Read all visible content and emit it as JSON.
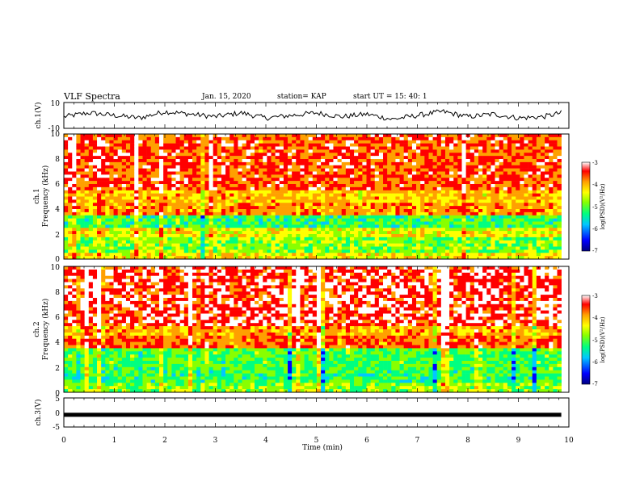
{
  "header": {
    "title": "VLF Spectra",
    "date": "Jan. 15, 2020",
    "station": "station= KAP",
    "start": "start  UT =   15: 40: 1"
  },
  "colors": {
    "colormap": [
      "#00007f",
      "#0000ff",
      "#00c8ff",
      "#00ff80",
      "#88ff00",
      "#ffff00",
      "#ffa000",
      "#ff0000",
      "#ffffff"
    ],
    "trace": "#000000"
  },
  "chart_data": [
    {
      "type": "line",
      "id": "ch1-waveform",
      "ylabel": "ch.1(V)",
      "ylim": [
        -10,
        10
      ],
      "yticks": [
        "10",
        "-10"
      ],
      "x_range_min": [
        0,
        9.85
      ],
      "x": [
        0,
        0.5,
        1.0,
        1.5,
        2.0,
        2.5,
        3.0,
        3.5,
        4.0,
        4.5,
        5.0,
        5.5,
        6.0,
        6.5,
        7.0,
        7.5,
        8.0,
        8.5,
        9.0,
        9.5,
        9.85
      ],
      "y": [
        -1,
        2,
        0,
        -2,
        3,
        1,
        -1,
        2,
        -2,
        0,
        2,
        -1,
        1,
        -3,
        0,
        3,
        -1,
        1,
        -2,
        -1,
        2
      ]
    },
    {
      "type": "heatmap",
      "id": "ch1-spectrogram",
      "ylabel": "ch.1\nFrequency (kHz)",
      "xlim_min": [
        0,
        9.85
      ],
      "ylim_khz": [
        0,
        10
      ],
      "yticks": [
        "10",
        "8",
        "6",
        "4",
        "2",
        "0"
      ],
      "colorbar": {
        "label": "log(PSD)(V²/Hz)",
        "range": [
          -7,
          -3
        ],
        "ticks": [
          "-3",
          "-4",
          "-5",
          "-6",
          "-7"
        ]
      },
      "bands_khz": [
        {
          "from": 0,
          "to": 0.6,
          "level": -4.5
        },
        {
          "from": 0.6,
          "to": 1.8,
          "level": -5.0
        },
        {
          "from": 1.8,
          "to": 2.4,
          "level": -4.6
        },
        {
          "from": 2.4,
          "to": 3.5,
          "level": -5.3
        },
        {
          "from": 3.5,
          "to": 4.5,
          "level": -4.1
        },
        {
          "from": 4.5,
          "to": 5.5,
          "level": -4.3
        },
        {
          "from": 5.5,
          "to": 10,
          "level": -3.8
        }
      ]
    },
    {
      "type": "heatmap",
      "id": "ch2-spectrogram",
      "ylabel": "ch.2\nFrequency (kHz)",
      "xlim_min": [
        0,
        9.85
      ],
      "ylim_khz": [
        0,
        10
      ],
      "yticks": [
        "10",
        "8",
        "6",
        "4",
        "2",
        "0"
      ],
      "colorbar": {
        "label": "log(PSD)(V²/Hz)",
        "range": [
          -7,
          -3
        ],
        "ticks": [
          "-3",
          "-4",
          "-5",
          "-6",
          "-7"
        ]
      },
      "bands_khz": [
        {
          "from": 0,
          "to": 0.8,
          "level": -5.0
        },
        {
          "from": 0.8,
          "to": 2.0,
          "level": -5.3
        },
        {
          "from": 2.0,
          "to": 3.5,
          "level": -5.2
        },
        {
          "from": 3.5,
          "to": 4.5,
          "level": -3.9
        },
        {
          "from": 4.5,
          "to": 5.2,
          "level": -4.2
        },
        {
          "from": 5.2,
          "to": 10,
          "level": -3.6
        }
      ]
    },
    {
      "type": "line",
      "id": "ch3-waveform",
      "ylabel": "ch.3(V)",
      "ylim": [
        -5,
        5
      ],
      "yticks": [
        "5",
        "0",
        "-5"
      ],
      "x_range_min": [
        0,
        9.85
      ],
      "x": [
        0,
        9.85
      ],
      "y": [
        -0.8,
        -0.8
      ]
    }
  ],
  "xaxis": {
    "label": "Time (min)",
    "range": [
      0,
      10
    ],
    "ticks": [
      "0",
      "1",
      "2",
      "3",
      "4",
      "5",
      "6",
      "7",
      "8",
      "9",
      "10"
    ]
  }
}
